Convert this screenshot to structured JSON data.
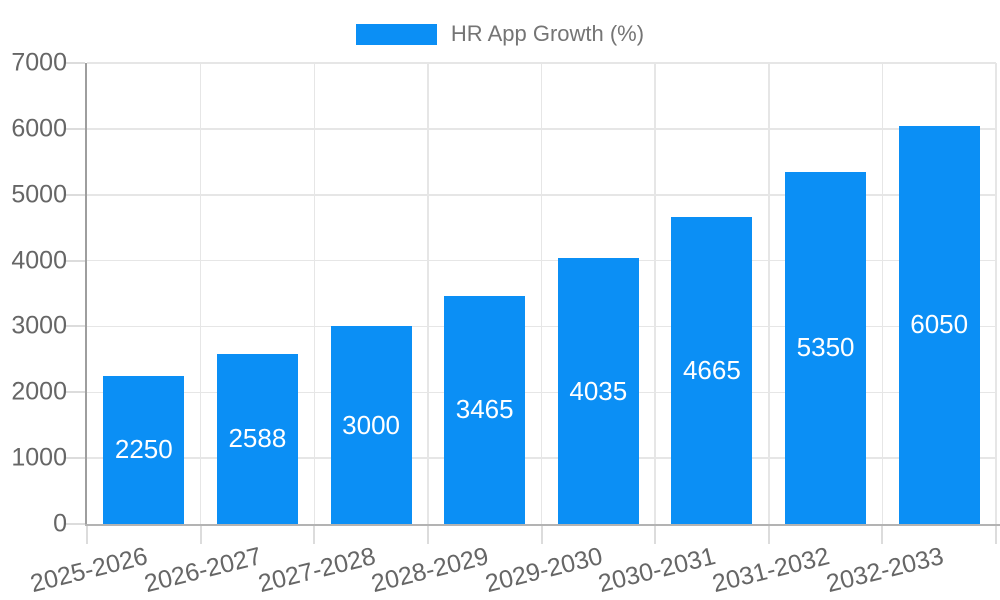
{
  "legend": {
    "label": "HR App Growth (%)",
    "swatch_color": "#0b8ff5"
  },
  "chart_data": {
    "type": "bar",
    "title": "HR App Growth (%)",
    "categories": [
      "2025-2026",
      "2026-2027",
      "2027-2028",
      "2028-2029",
      "2029-2030",
      "2030-2031",
      "2031-2032",
      "2032-2033"
    ],
    "series": [
      {
        "name": "HR App Growth (%)",
        "values": [
          2250,
          2588,
          3000,
          3465,
          4035,
          4665,
          5350,
          6050
        ],
        "color": "#0b8ff5"
      }
    ],
    "value_labels": [
      2250,
      2588,
      3000,
      3465,
      4035,
      4665,
      5350,
      6050
    ],
    "value_labels_visible": true,
    "value_label_position": "inside-center",
    "xlabel": "",
    "ylabel": "",
    "ylim": [
      0,
      7000
    ],
    "yticks": [
      0,
      1000,
      2000,
      3000,
      4000,
      5000,
      6000,
      7000
    ],
    "grid": true,
    "legend_position": "top-center",
    "x_label_rotation_deg": -14
  },
  "colors": {
    "bar": "#0b8ff5",
    "value_label": "#ffffff",
    "axis_label": "#666666",
    "legend_text": "#757575",
    "gridline": "#e6e6e6",
    "y_axis_line": "#9e9e9e",
    "x_axis_line": "#b3b3b3",
    "tick": "#dcdcdc",
    "background": "#ffffff"
  }
}
